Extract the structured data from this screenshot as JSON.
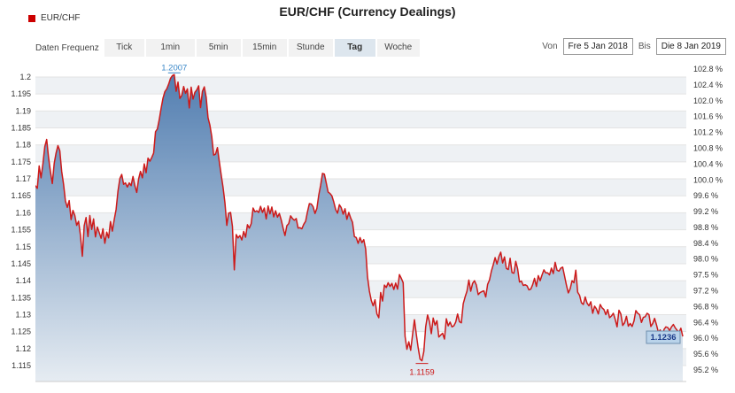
{
  "title": "EUR/CHF (Currency Dealings)",
  "legend": {
    "label": "EUR/CHF",
    "color": "#cc0000"
  },
  "toolbar": {
    "freq_label": "Daten Frequenz",
    "buttons": [
      "Tick",
      "1min",
      "5min",
      "15min",
      "Stunde",
      "Tag",
      "Woche"
    ],
    "active": "Tag"
  },
  "range": {
    "from_label": "Von",
    "from_value": "Fre 5 Jan 2018",
    "to_label": "Bis",
    "to_value": "Die 8 Jan 2019"
  },
  "chart_data": {
    "type": "area",
    "series": [
      {
        "name": "EUR/CHF",
        "values": [
          1.168,
          1.1672,
          1.1738,
          1.1703,
          1.1745,
          1.1795,
          1.1816,
          1.1763,
          1.1722,
          1.1686,
          1.1745,
          1.1776,
          1.1798,
          1.1783,
          1.1722,
          1.1684,
          1.1635,
          1.1616,
          1.1636,
          1.158,
          1.1607,
          1.1592,
          1.1563,
          1.1575,
          1.1534,
          1.1472,
          1.1562,
          1.1586,
          1.153,
          1.1592,
          1.1551,
          1.1582,
          1.1529,
          1.1558,
          1.1542,
          1.1525,
          1.1553,
          1.151,
          1.1543,
          1.1526,
          1.1574,
          1.1546,
          1.158,
          1.161,
          1.1664,
          1.1701,
          1.1713,
          1.1684,
          1.1688,
          1.1676,
          1.1688,
          1.168,
          1.1707,
          1.168,
          1.166,
          1.17,
          1.1722,
          1.1703,
          1.1744,
          1.1718,
          1.1761,
          1.1752,
          1.1763,
          1.1776,
          1.1839,
          1.1847,
          1.1875,
          1.1908,
          1.1938,
          1.1957,
          1.1965,
          1.1979,
          1.1996,
          1.2004,
          1.2007,
          1.1958,
          1.1985,
          1.1937,
          1.1946,
          1.1972,
          1.1952,
          1.1965,
          1.1909,
          1.197,
          1.1935,
          1.1955,
          1.1962,
          1.1974,
          1.191,
          1.1958,
          1.1971,
          1.1941,
          1.188,
          1.1858,
          1.1824,
          1.177,
          1.1773,
          1.1792,
          1.1751,
          1.1712,
          1.1675,
          1.163,
          1.1563,
          1.1599,
          1.1601,
          1.156,
          1.1432,
          1.1536,
          1.1526,
          1.1533,
          1.152,
          1.1545,
          1.1528,
          1.1565,
          1.1555,
          1.1568,
          1.1614,
          1.1603,
          1.1606,
          1.1601,
          1.1619,
          1.1601,
          1.1614,
          1.1582,
          1.162,
          1.1597,
          1.1617,
          1.1588,
          1.1606,
          1.1587,
          1.1598,
          1.1579,
          1.1555,
          1.1533,
          1.1562,
          1.1568,
          1.1591,
          1.1583,
          1.1578,
          1.1583,
          1.1555,
          1.1556,
          1.1553,
          1.1566,
          1.1575,
          1.1603,
          1.1627,
          1.1626,
          1.1618,
          1.1598,
          1.1613,
          1.1652,
          1.1681,
          1.1716,
          1.1714,
          1.1688,
          1.1661,
          1.1657,
          1.165,
          1.1632,
          1.161,
          1.1599,
          1.1624,
          1.1615,
          1.1596,
          1.1612,
          1.1581,
          1.1601,
          1.1585,
          1.1572,
          1.153,
          1.1527,
          1.151,
          1.1527,
          1.1512,
          1.1521,
          1.1493,
          1.1411,
          1.1369,
          1.1342,
          1.1326,
          1.1344,
          1.1302,
          1.1291,
          1.1365,
          1.134,
          1.1387,
          1.138,
          1.1394,
          1.1383,
          1.1392,
          1.1374,
          1.1393,
          1.1375,
          1.1418,
          1.1407,
          1.1394,
          1.1236,
          1.1198,
          1.122,
          1.1195,
          1.1241,
          1.1285,
          1.1242,
          1.1202,
          1.1169,
          1.1164,
          1.1191,
          1.1264,
          1.1299,
          1.1279,
          1.1244,
          1.129,
          1.1269,
          1.1282,
          1.1234,
          1.124,
          1.1245,
          1.1228,
          1.1288,
          1.1267,
          1.1278,
          1.1264,
          1.1267,
          1.1278,
          1.1302,
          1.1279,
          1.1276,
          1.1332,
          1.1352,
          1.1369,
          1.1402,
          1.1369,
          1.1392,
          1.14,
          1.1387,
          1.1359,
          1.1365,
          1.1368,
          1.137,
          1.1352,
          1.1389,
          1.1402,
          1.1428,
          1.1447,
          1.1468,
          1.1449,
          1.1471,
          1.1484,
          1.1452,
          1.147,
          1.1436,
          1.1433,
          1.1466,
          1.1424,
          1.1422,
          1.1457,
          1.1435,
          1.1396,
          1.1399,
          1.1386,
          1.1388,
          1.1385,
          1.1373,
          1.1375,
          1.1388,
          1.1407,
          1.1383,
          1.1415,
          1.14,
          1.1417,
          1.1432,
          1.1423,
          1.1423,
          1.1417,
          1.1437,
          1.1421,
          1.1454,
          1.1431,
          1.1428,
          1.1437,
          1.144,
          1.1414,
          1.1387,
          1.1364,
          1.1376,
          1.14,
          1.1394,
          1.1431,
          1.1366,
          1.1357,
          1.1335,
          1.133,
          1.1352,
          1.1334,
          1.1326,
          1.1338,
          1.1304,
          1.1325,
          1.1317,
          1.1302,
          1.133,
          1.132,
          1.1315,
          1.13,
          1.1315,
          1.1291,
          1.1296,
          1.1304,
          1.1286,
          1.1264,
          1.1313,
          1.1302,
          1.1268,
          1.1276,
          1.1295,
          1.1266,
          1.1274,
          1.1265,
          1.1281,
          1.1312,
          1.1304,
          1.13,
          1.1277,
          1.1292,
          1.1294,
          1.1304,
          1.13,
          1.1265,
          1.1274,
          1.1289,
          1.127,
          1.1248,
          1.1255,
          1.1233,
          1.1256,
          1.1264,
          1.1262,
          1.1253,
          1.1264,
          1.1271,
          1.1261,
          1.1254,
          1.1248,
          1.126,
          1.1236
        ]
      }
    ],
    "x_range": [
      "Fre 5 Jan 2018",
      "Die 8 Jan 2019"
    ],
    "y_left": {
      "ticks": [
        1.115,
        1.12,
        1.125,
        1.13,
        1.135,
        1.14,
        1.145,
        1.15,
        1.155,
        1.16,
        1.165,
        1.17,
        1.175,
        1.18,
        1.185,
        1.19,
        1.195,
        1.2
      ],
      "tick_labels": [
        "1.115",
        "1.12",
        "1.125",
        "1.13",
        "1.135",
        "1.14",
        "1.145",
        "1.15",
        "1.155",
        "1.16",
        "1.165",
        "1.17",
        "1.175",
        "1.18",
        "1.185",
        "1.19",
        "1.195",
        "1.2"
      ],
      "ylim": [
        1.113,
        1.2015
      ]
    },
    "y_right": {
      "ticks": [
        95.2,
        95.6,
        96.0,
        96.4,
        96.8,
        97.2,
        97.5,
        98.0,
        98.4,
        98.8,
        99.2,
        99.6,
        100.0,
        100.4,
        100.8,
        101.2,
        101.6,
        102.0,
        102.4,
        102.8
      ],
      "tick_labels": [
        "95.2 %",
        "95.6 %",
        "96.0 %",
        "96.4 %",
        "96.8 %",
        "97.2 %",
        "97.5 %",
        "98.0 %",
        "98.4 %",
        "98.8 %",
        "99.2 %",
        "99.6 %",
        "100.0 %",
        "100.4 %",
        "100.8 %",
        "101.2 %",
        "101.6 %",
        "102.0 %",
        "102.4 %",
        "102.8 %"
      ]
    },
    "annotations": {
      "high": {
        "label": "1.2007",
        "value": 1.2007
      },
      "low": {
        "label": "1.1159",
        "value": 1.1159
      },
      "last": {
        "label": "1.1236",
        "value": 1.1236
      }
    },
    "grid": true,
    "line_color": "#cc1a1a",
    "fill_top_color": "#4a78ad",
    "fill_bottom_color": "#e6ecf2"
  }
}
